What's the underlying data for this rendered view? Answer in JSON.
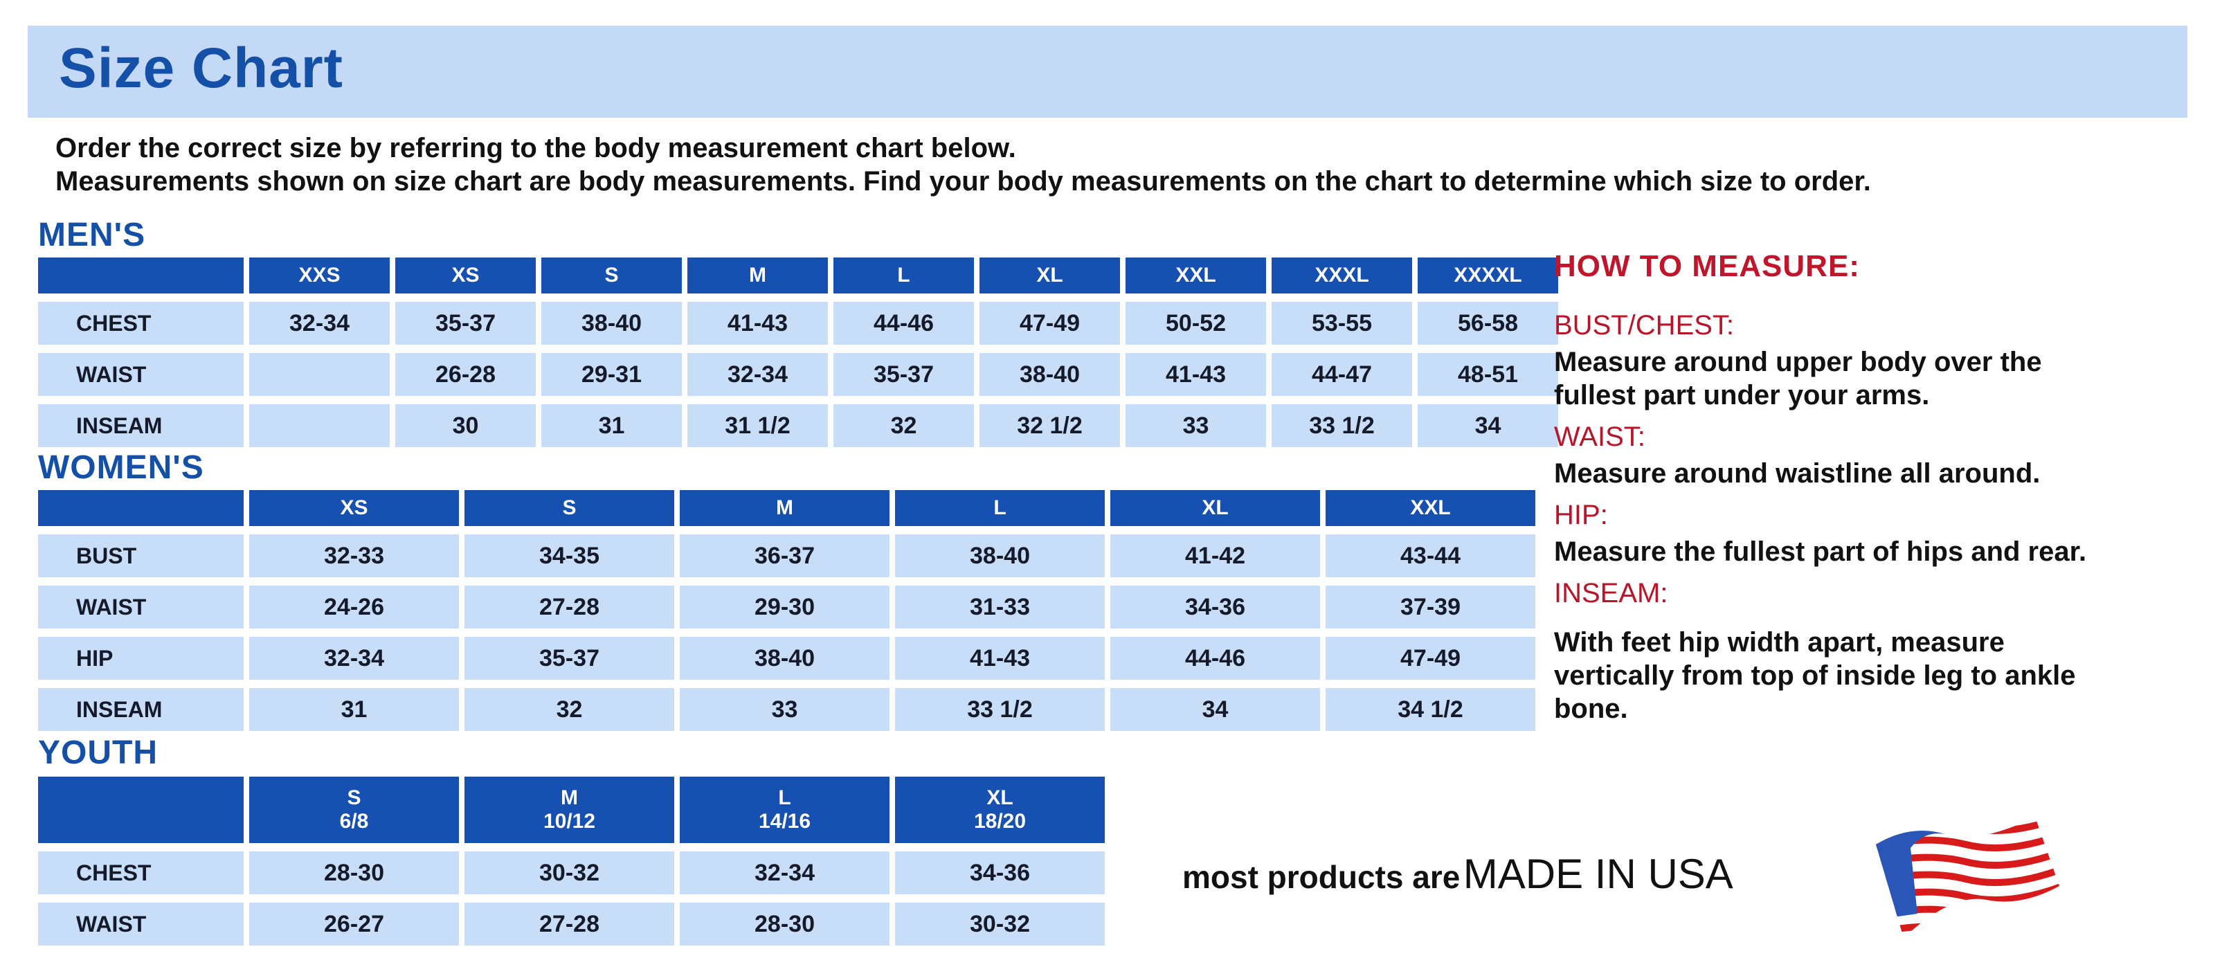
{
  "title": "Size Chart",
  "intro": [
    "Order the correct size by referring to the body measurement chart below.",
    "Measurements shown on size chart are body measurements.  Find your body measurements on the chart to determine which size to order."
  ],
  "colors": {
    "header_blue": "#1650b0",
    "cell_blue": "#c8ddf7",
    "band": "#c3d9f5",
    "title_blue": "#1550a8",
    "red": "#c0152a"
  },
  "tables": [
    {
      "label": "MEN'S",
      "sizes": [
        [
          "XXS"
        ],
        [
          "XS"
        ],
        [
          "S"
        ],
        [
          "M"
        ],
        [
          "L"
        ],
        [
          "XL"
        ],
        [
          "XXL"
        ],
        [
          "XXXL"
        ],
        [
          "XXXXL"
        ]
      ],
      "rows": [
        {
          "name": "CHEST",
          "values": [
            "32-34",
            "35-37",
            "38-40",
            "41-43",
            "44-46",
            "47-49",
            "50-52",
            "53-55",
            "56-58"
          ]
        },
        {
          "name": "WAIST",
          "values": [
            "",
            "26-28",
            "29-31",
            "32-34",
            "35-37",
            "38-40",
            "41-43",
            "44-47",
            "48-51"
          ]
        },
        {
          "name": "INSEAM",
          "values": [
            "",
            "30",
            "31",
            "31 1/2",
            "32",
            "32 1/2",
            "33",
            "33 1/2",
            "34"
          ]
        }
      ]
    },
    {
      "label": "WOMEN'S",
      "sizes": [
        [
          "XS"
        ],
        [
          "S"
        ],
        [
          "M"
        ],
        [
          "L"
        ],
        [
          "XL"
        ],
        [
          "XXL"
        ]
      ],
      "rows": [
        {
          "name": "BUST",
          "values": [
            "32-33",
            "34-35",
            "36-37",
            "38-40",
            "41-42",
            "43-44"
          ]
        },
        {
          "name": "WAIST",
          "values": [
            "24-26",
            "27-28",
            "29-30",
            "31-33",
            "34-36",
            "37-39"
          ]
        },
        {
          "name": "HIP",
          "values": [
            "32-34",
            "35-37",
            "38-40",
            "41-43",
            "44-46",
            "47-49"
          ]
        },
        {
          "name": "INSEAM",
          "values": [
            "31",
            "32",
            "33",
            "33 1/2",
            "34",
            "34 1/2"
          ]
        }
      ]
    },
    {
      "label": "YOUTH",
      "sizes": [
        [
          "S",
          "6/8"
        ],
        [
          "M",
          "10/12"
        ],
        [
          "L",
          "14/16"
        ],
        [
          "XL",
          "18/20"
        ]
      ],
      "rows": [
        {
          "name": "CHEST",
          "values": [
            "28-30",
            "30-32",
            "32-34",
            "34-36"
          ]
        },
        {
          "name": "WAIST",
          "values": [
            "26-27",
            "27-28",
            "28-30",
            "30-32"
          ]
        }
      ]
    }
  ],
  "how_to_measure": {
    "heading": "HOW TO MEASURE:",
    "items": [
      {
        "label": "BUST/CHEST:",
        "text": "Measure around upper body over the fullest part under your arms."
      },
      {
        "label": "WAIST:",
        "text": "Measure around waistline all around."
      },
      {
        "label": "HIP:",
        "text": "Measure the fullest part of hips and rear."
      },
      {
        "label": "INSEAM:",
        "text": "With feet hip width apart, measure vertically from top of inside leg to ankle bone."
      }
    ]
  },
  "made_in_usa": {
    "prefix": "most products are",
    "emphasis": "MADE IN USA",
    "icon": "us-flag-icon"
  }
}
